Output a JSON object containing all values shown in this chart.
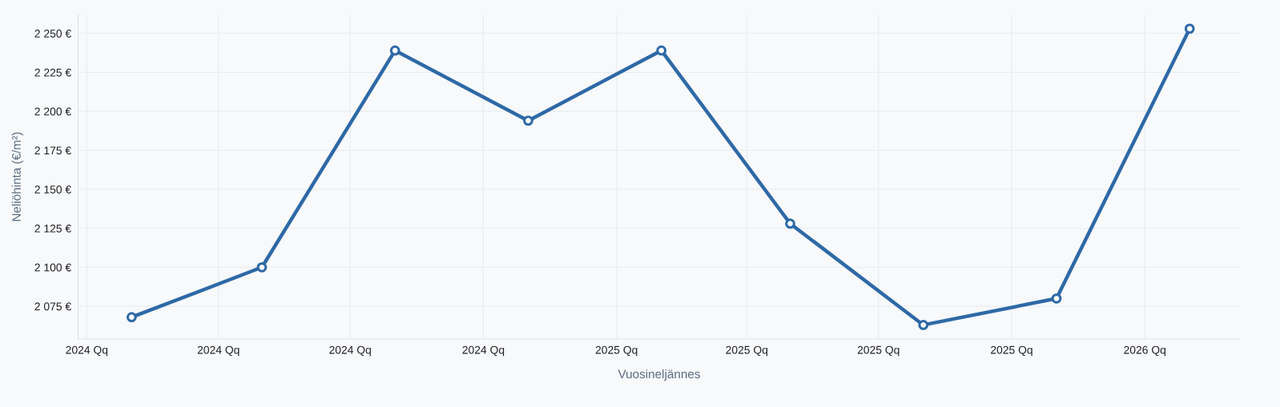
{
  "chart_data": {
    "type": "line",
    "xlabel": "Vuosineljännes",
    "ylabel": "Neliöhinta (€/m²)",
    "x": [
      "2024-02-01",
      "2024-05-01",
      "2024-08-01",
      "2024-11-01",
      "2025-02-01",
      "2025-05-01",
      "2025-08-01",
      "2025-11-01",
      "2026-02-01"
    ],
    "series": [
      {
        "color": "#2e69a6",
        "values": [
          2068,
          2100,
          2239,
          2194,
          2239,
          2128,
          2063,
          2080,
          2253
        ]
      }
    ],
    "xlim": [
      "2023-12-26",
      "2026-03-08"
    ],
    "xticks": [
      {
        "value": "2024-01-01",
        "label": "2024 Qq"
      },
      {
        "value": "2024-04-01",
        "label": "2024 Qq"
      },
      {
        "value": "2024-07-01",
        "label": "2024 Qq"
      },
      {
        "value": "2024-10-01",
        "label": "2024 Qq"
      },
      {
        "value": "2025-01-01",
        "label": "2025 Qq"
      },
      {
        "value": "2025-04-01",
        "label": "2025 Qq"
      },
      {
        "value": "2025-07-01",
        "label": "2025 Qq"
      },
      {
        "value": "2025-10-01",
        "label": "2025 Qq"
      },
      {
        "value": "2026-01-01",
        "label": "2026 Qq"
      }
    ],
    "ylim": [
      2054,
      2262
    ],
    "yticks": [
      {
        "value": 2075,
        "label": "2 075 €"
      },
      {
        "value": 2100,
        "label": "2 100 €"
      },
      {
        "value": 2125,
        "label": "2 125 €"
      },
      {
        "value": 2150,
        "label": "2 150 €"
      },
      {
        "value": 2175,
        "label": "2 175 €"
      },
      {
        "value": 2200,
        "label": "2 200 €"
      },
      {
        "value": 2225,
        "label": "2 225 €"
      },
      {
        "value": 2250,
        "label": "2 250 €"
      }
    ],
    "grid": true,
    "marker": "circle",
    "line_style": "solid"
  }
}
